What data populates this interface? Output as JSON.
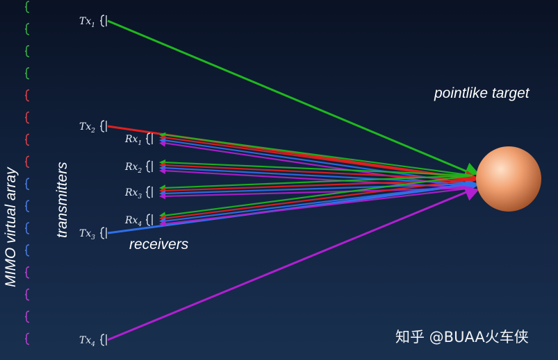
{
  "labels": {
    "array_label": "MIMO virtual array",
    "transmitters_label": "transmitters",
    "receivers_label": "receivers",
    "target_label": "pointlike target",
    "watermark": "知乎 @BUAA火车侠"
  },
  "transmitters": [
    {
      "name": "Tx",
      "sub": "1",
      "color": "#1fb81f"
    },
    {
      "name": "Tx",
      "sub": "2",
      "color": "#e0201e"
    },
    {
      "name": "Tx",
      "sub": "3",
      "color": "#2f6fe8"
    },
    {
      "name": "Tx",
      "sub": "4",
      "color": "#b21fd0"
    }
  ],
  "receivers": [
    {
      "name": "Rx",
      "sub": "1"
    },
    {
      "name": "Rx",
      "sub": "2"
    },
    {
      "name": "Rx",
      "sub": "3"
    },
    {
      "name": "Rx",
      "sub": "4"
    }
  ],
  "virtual_array_colors": [
    "#3aa84a",
    "#d0404a",
    "#4a78d8",
    "#b040c8"
  ],
  "target_color": "#f0a070"
}
